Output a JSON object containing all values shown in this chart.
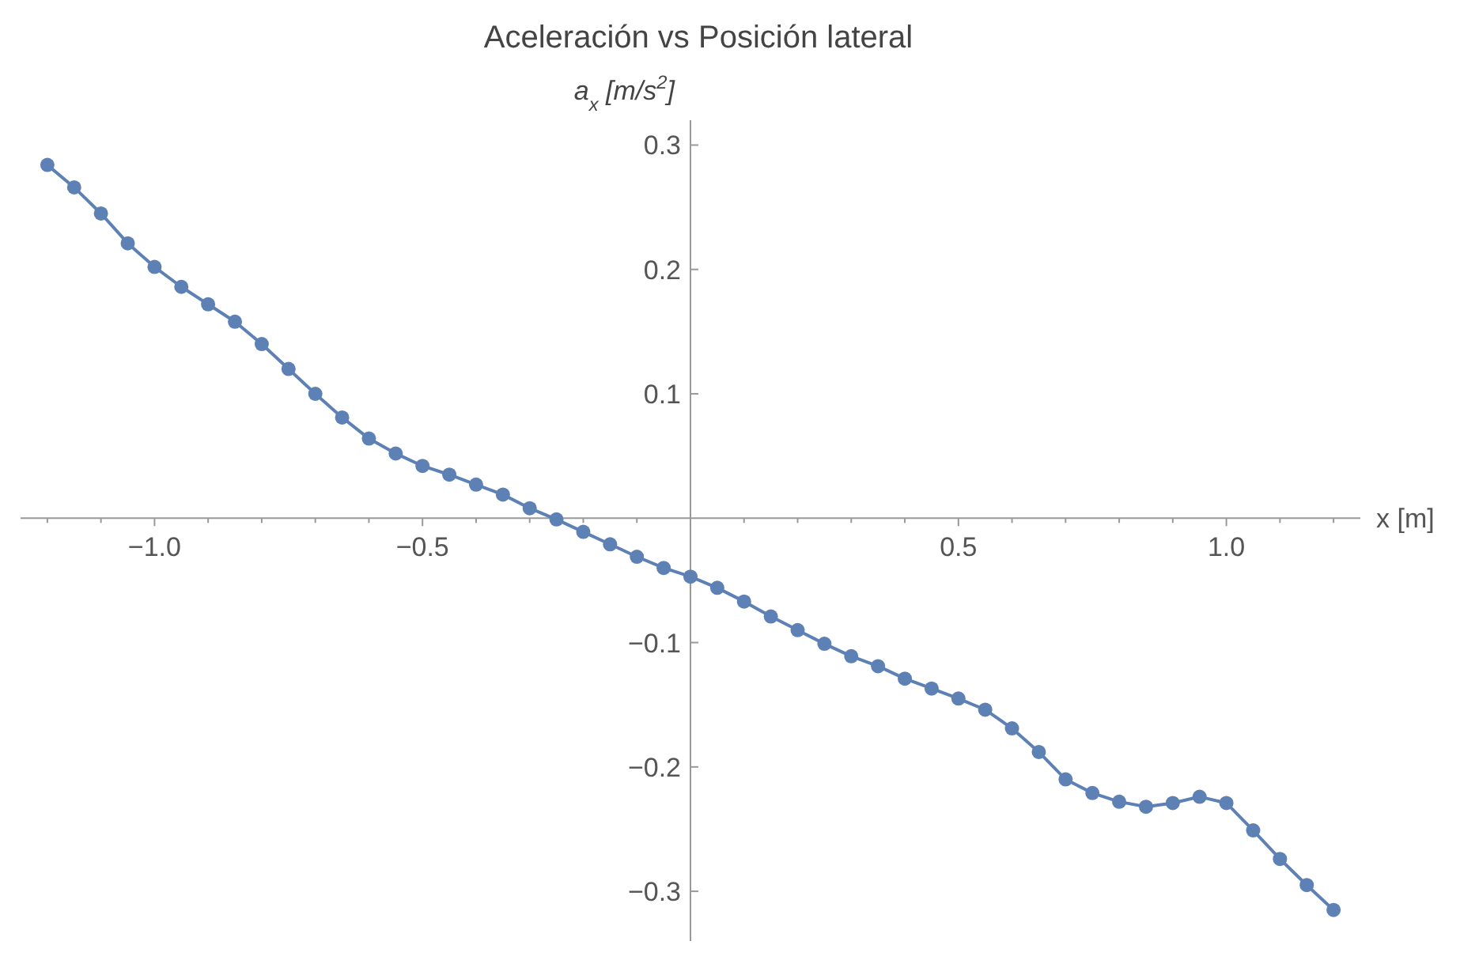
{
  "chart_data": {
    "type": "line",
    "title": "Aceleración vs Posición lateral",
    "xlabel": "x [m]",
    "ylabel": "a$_{x}$ [m/s$^{2}$]",
    "x": [
      -1.2,
      -1.15,
      -1.1,
      -1.05,
      -1.0,
      -0.95,
      -0.9,
      -0.85,
      -0.8,
      -0.75,
      -0.7,
      -0.65,
      -0.6,
      -0.55,
      -0.5,
      -0.45,
      -0.4,
      -0.35,
      -0.3,
      -0.25,
      -0.2,
      -0.15,
      -0.1,
      -0.05,
      0,
      0.05,
      0.1,
      0.15,
      0.2,
      0.25,
      0.3,
      0.35,
      0.4,
      0.45,
      0.5,
      0.55,
      0.6,
      0.65,
      0.7,
      0.75,
      0.8,
      0.85,
      0.9,
      0.95,
      1.0,
      1.05,
      1.1,
      1.15,
      1.2
    ],
    "series": [
      {
        "color": "#5e81b5",
        "values": [
          0.284,
          0.266,
          0.245,
          0.221,
          0.202,
          0.186,
          0.172,
          0.158,
          0.14,
          0.12,
          0.1,
          0.081,
          0.064,
          0.052,
          0.042,
          0.035,
          0.027,
          0.019,
          0.008,
          -0.001,
          -0.011,
          -0.021,
          -0.031,
          -0.04,
          -0.047,
          -0.056,
          -0.067,
          -0.079,
          -0.09,
          -0.101,
          -0.111,
          -0.119,
          -0.129,
          -0.137,
          -0.145,
          -0.154,
          -0.169,
          -0.188,
          -0.21,
          -0.221,
          -0.228,
          -0.232,
          -0.229,
          -0.224,
          -0.229,
          -0.251,
          -0.274,
          -0.295,
          -0.315
        ]
      }
    ],
    "xlim": [
      -1.25,
      1.25
    ],
    "ylim": [
      -0.34,
      0.32
    ],
    "xticks": [
      {
        "value": -1.2,
        "label": null
      },
      {
        "value": -1.1,
        "label": null
      },
      {
        "value": -1.0,
        "label": "−1.0"
      },
      {
        "value": -0.9,
        "label": null
      },
      {
        "value": -0.8,
        "label": null
      },
      {
        "value": -0.7,
        "label": null
      },
      {
        "value": -0.6,
        "label": null
      },
      {
        "value": -0.5,
        "label": "−0.5"
      },
      {
        "value": -0.4,
        "label": null
      },
      {
        "value": -0.3,
        "label": null
      },
      {
        "value": -0.2,
        "label": null
      },
      {
        "value": -0.1,
        "label": null
      },
      {
        "value": 0.1,
        "label": null
      },
      {
        "value": 0.2,
        "label": null
      },
      {
        "value": 0.3,
        "label": null
      },
      {
        "value": 0.4,
        "label": null
      },
      {
        "value": 0.5,
        "label": "0.5"
      },
      {
        "value": 0.6,
        "label": null
      },
      {
        "value": 0.7,
        "label": null
      },
      {
        "value": 0.8,
        "label": null
      },
      {
        "value": 0.9,
        "label": null
      },
      {
        "value": 1.0,
        "label": "1.0"
      },
      {
        "value": 1.1,
        "label": null
      },
      {
        "value": 1.2,
        "label": null
      }
    ],
    "yticks": [
      {
        "value": -0.3,
        "label": "−0.3"
      },
      {
        "value": -0.2,
        "label": "−0.2"
      },
      {
        "value": -0.1,
        "label": "−0.1"
      },
      0.1,
      0.2,
      0.3
    ],
    "marker": "circle",
    "line_style": "solid"
  }
}
